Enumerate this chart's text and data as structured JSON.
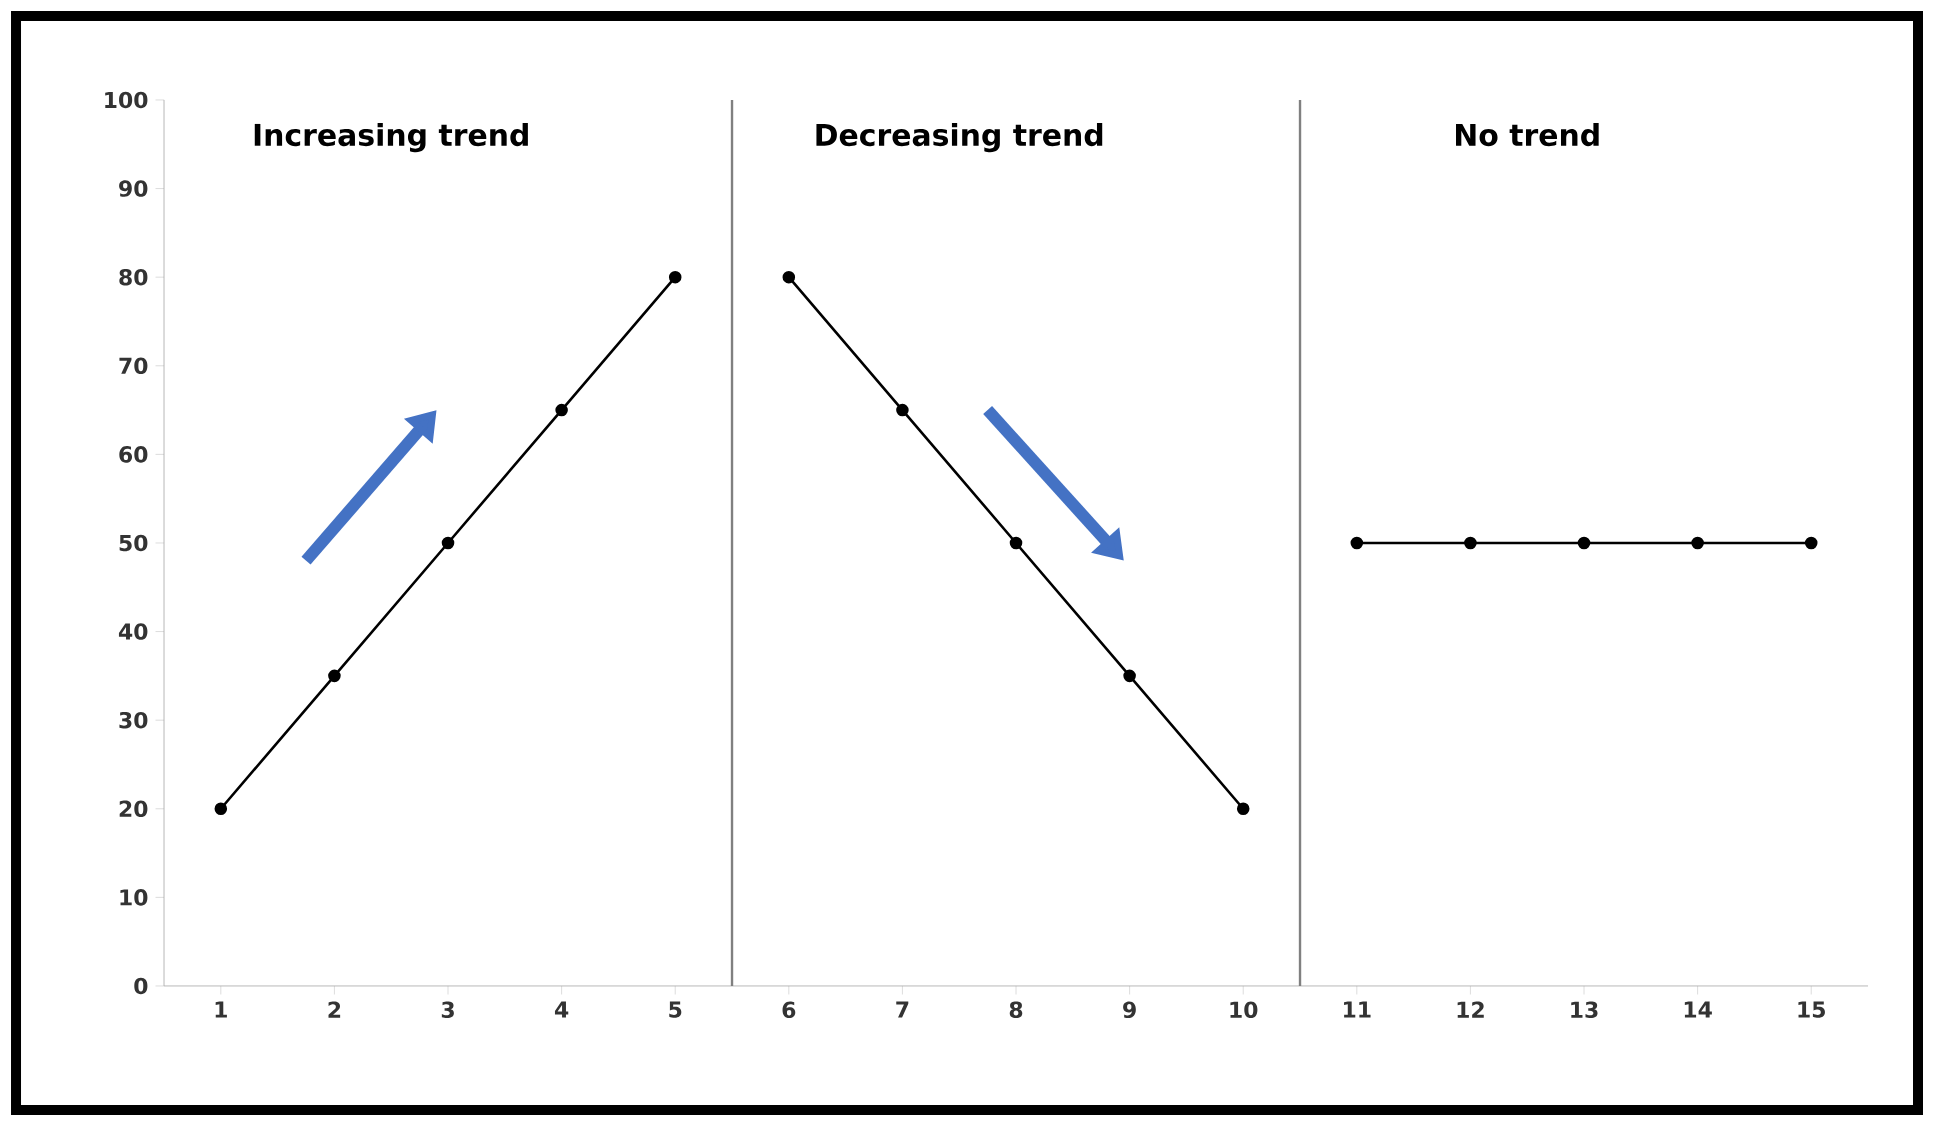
{
  "chart_data": {
    "type": "line",
    "series": [
      {
        "color": "#000000",
        "x": [
          1,
          2,
          3,
          4,
          5
        ],
        "values": [
          20,
          35,
          50,
          65,
          80
        ]
      },
      {
        "color": "#000000",
        "x": [
          6,
          7,
          8,
          9,
          10
        ],
        "values": [
          80,
          65,
          50,
          35,
          20
        ]
      },
      {
        "color": "#000000",
        "x": [
          11,
          12,
          13,
          14,
          15
        ],
        "values": [
          50,
          50,
          50,
          50,
          50
        ]
      }
    ],
    "xlim": [
      0.5,
      15.5
    ],
    "ylim": [
      0,
      100
    ],
    "xticks": [
      1,
      2,
      3,
      4,
      5,
      6,
      7,
      8,
      9,
      10,
      11,
      12,
      13,
      14,
      15
    ],
    "yticks": [
      0,
      10,
      20,
      30,
      40,
      50,
      60,
      70,
      80,
      90,
      100
    ],
    "ref_lines": [
      {
        "axis": "x",
        "value": 5.5,
        "color": "#808080"
      },
      {
        "axis": "x",
        "value": 10.5,
        "color": "#808080"
      }
    ],
    "annotations": [
      "Increasing trend",
      "Decreasing trend",
      "No trend"
    ],
    "marker": "circle",
    "line_style": "solid",
    "grid": false
  }
}
